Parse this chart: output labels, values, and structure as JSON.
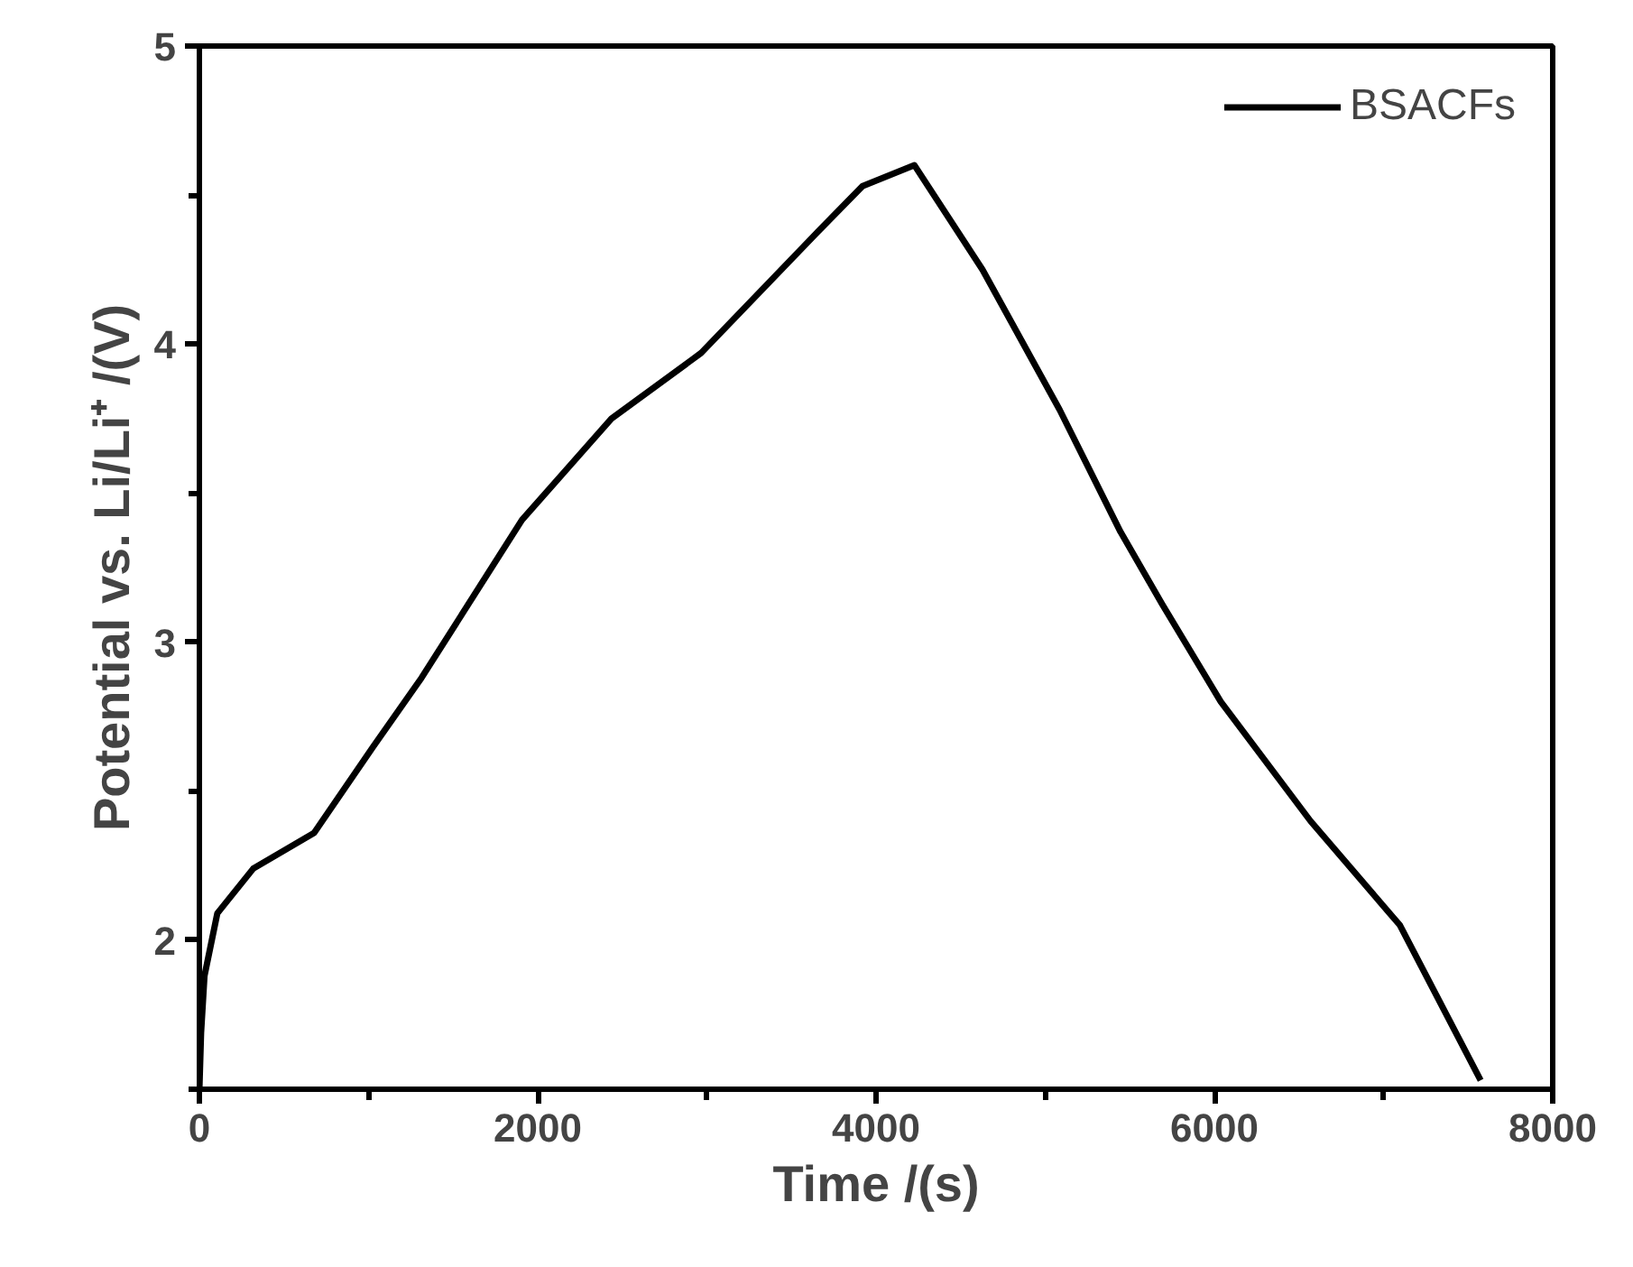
{
  "chart_data": {
    "type": "line",
    "xlabel": "Time /(s)",
    "ylabel": "Potential vs. Li/Li⁺ /(V)",
    "xlim": [
      0,
      8000
    ],
    "ylim": [
      1.5,
      5
    ],
    "xticks": [
      0,
      {
        "value": 1000,
        "label": null
      },
      2000,
      {
        "value": 3000,
        "label": null
      },
      4000,
      {
        "value": 5000,
        "label": null
      },
      6000,
      {
        "value": 7000,
        "label": null
      },
      8000
    ],
    "yticks": [
      {
        "value": 1.5,
        "label": null
      },
      2,
      {
        "value": 2.5,
        "label": null
      },
      3,
      {
        "value": 3.5,
        "label": null
      },
      4,
      {
        "value": 4.5,
        "label": null
      },
      5
    ],
    "grid": false,
    "legend": "top right",
    "line_style": "solid",
    "marker": "none",
    "series": [
      {
        "name": "BSACFs",
        "color": "#000000",
        "x": [
          0,
          10,
          30,
          106,
          318,
          678,
          1028,
          1313,
          1907,
          2436,
          2966,
          3644,
          3920,
          4227,
          4629,
          5085,
          5445,
          5689,
          6038,
          6568,
          7097,
          7574
        ],
        "values": [
          1.5,
          1.69,
          1.88,
          2.09,
          2.24,
          2.36,
          2.65,
          2.88,
          3.41,
          3.75,
          3.97,
          4.37,
          4.53,
          4.6,
          4.25,
          3.78,
          3.37,
          3.13,
          2.8,
          2.4,
          2.05,
          1.53
        ]
      }
    ]
  }
}
